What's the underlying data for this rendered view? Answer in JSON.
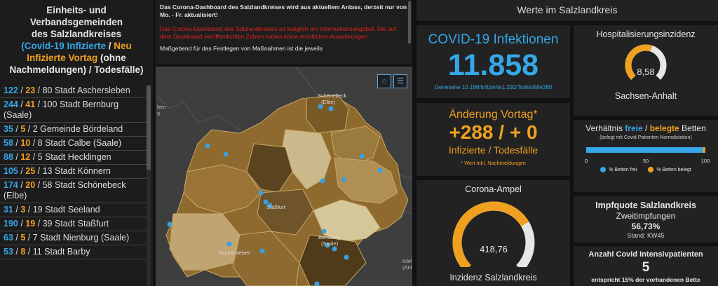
{
  "left": {
    "title_l1": "Einheits- und",
    "title_l2": "Verbandsgemeinden",
    "title_l3": "des Salzlandkreises",
    "legend_infected": "(Covid-19 Infizierte",
    "legend_sep1": "/",
    "legend_new": "Neu",
    "legend_new2": "Infizierte Vortag",
    "legend_paren": "(ohne",
    "legend_late": "Nachmeldungen)",
    "legend_sep2": "/ Todesfälle)",
    "items": [
      {
        "infected": "122",
        "new": "23",
        "rest": "80 Stadt Aschersleben"
      },
      {
        "infected": "244",
        "new": "41",
        "rest": "100 Stadt Bernburg (Saale)"
      },
      {
        "infected": "35",
        "new": "5",
        "rest": "2 Gemeinde Bördeland"
      },
      {
        "infected": "58",
        "new": "10",
        "rest": "8 Stadt Calbe (Saale)"
      },
      {
        "infected": "88",
        "new": "12",
        "rest": "5 Stadt Hecklingen"
      },
      {
        "infected": "105",
        "new": "25",
        "rest": "13 Stadt Könnern"
      },
      {
        "infected": "174",
        "new": "20",
        "rest": "58 Stadt Schönebeck (Elbe)"
      },
      {
        "infected": "31",
        "new": "3",
        "rest": "19 Stadt Seeland"
      },
      {
        "infected": "190",
        "new": "19",
        "rest": "39 Stadt Staßfurt"
      },
      {
        "infected": "63",
        "new": "5",
        "rest": "7 Stadt Nienburg (Saale)"
      },
      {
        "infected": "53",
        "new": "8",
        "rest": "11 Stadt Barby"
      }
    ]
  },
  "notice": {
    "line1": "Das Corona-Dashboard des Salzlandkreises wird aus aktuellem Anlass, derzeit  nur von Mo. - Fr. aktualisiert!",
    "line2": "Das Corona-Dashboard des Salzlandkreises ist lediglich ein Informationsangebot. Die auf dem Dashboard veröffentlichten Zahlen haben keine rechtlichen Auswirkungen.",
    "line3": "Maßgebend für das Festlegen von Maßnahmen ist die jeweils"
  },
  "map": {
    "label_schoenebeck": "Schönebeck",
    "label_elbe": "(Elbe)",
    "label_stassfurt": "Staßfurt",
    "label_aschersleben": "Aschersleben",
    "label_bernburg": "Bernburg",
    "label_saale": "(Saale)",
    "label_koethen": "Köth",
    "label_anh": "(Anh",
    "label_ben": "ben",
    "label_9": "9"
  },
  "header": {
    "title": "Werte im Salzlandkreis"
  },
  "infections": {
    "title": "COVID-19 Infektionen",
    "value": "11.858",
    "sub": "Genesene 10.186/Infizierte1.292/Todesfälle380"
  },
  "hospital": {
    "title": "Hospitalisierungsinzidenz",
    "value": "8,58",
    "caption": "Sachsen-Anhalt",
    "gauge_fraction": 0.57
  },
  "change": {
    "title": "Änderung Vortag*",
    "value": "+288 / + 0",
    "sub": "Infizierte / Todesfälle",
    "note": "* Wert inkl. Nachmeldungen"
  },
  "beds": {
    "title_pre": "Verhältnis",
    "title_free": "freie",
    "title_sep": "/",
    "title_occ": "belegte",
    "title_post": "Betten",
    "sub": "(belegt mit Covid Patienten Normalstation)",
    "tick0": "0",
    "tick50": "50",
    "tick100": "100",
    "free_fraction": 0.98,
    "legend_free": "% Betten frei",
    "legend_occ": "% Betten belegt"
  },
  "ampel": {
    "title": "Corona-Ampel",
    "value": "418,76",
    "caption": "Inzidenz Salzlandkreis",
    "gauge_fraction": 0.72
  },
  "vacc": {
    "title": "Impfquote Salzlandkreis",
    "sub": "Zweitimpfungen",
    "value": "56,73%",
    "stand": "Stand: KW45"
  },
  "icu": {
    "title": "Anzahl Covid Intensivpatienten",
    "value": "5",
    "sub": "entspricht 15% der vorhandenen Bette"
  },
  "colors": {
    "blue": "#35a7e8",
    "orange": "#f0a020",
    "red": "#e2241b"
  }
}
